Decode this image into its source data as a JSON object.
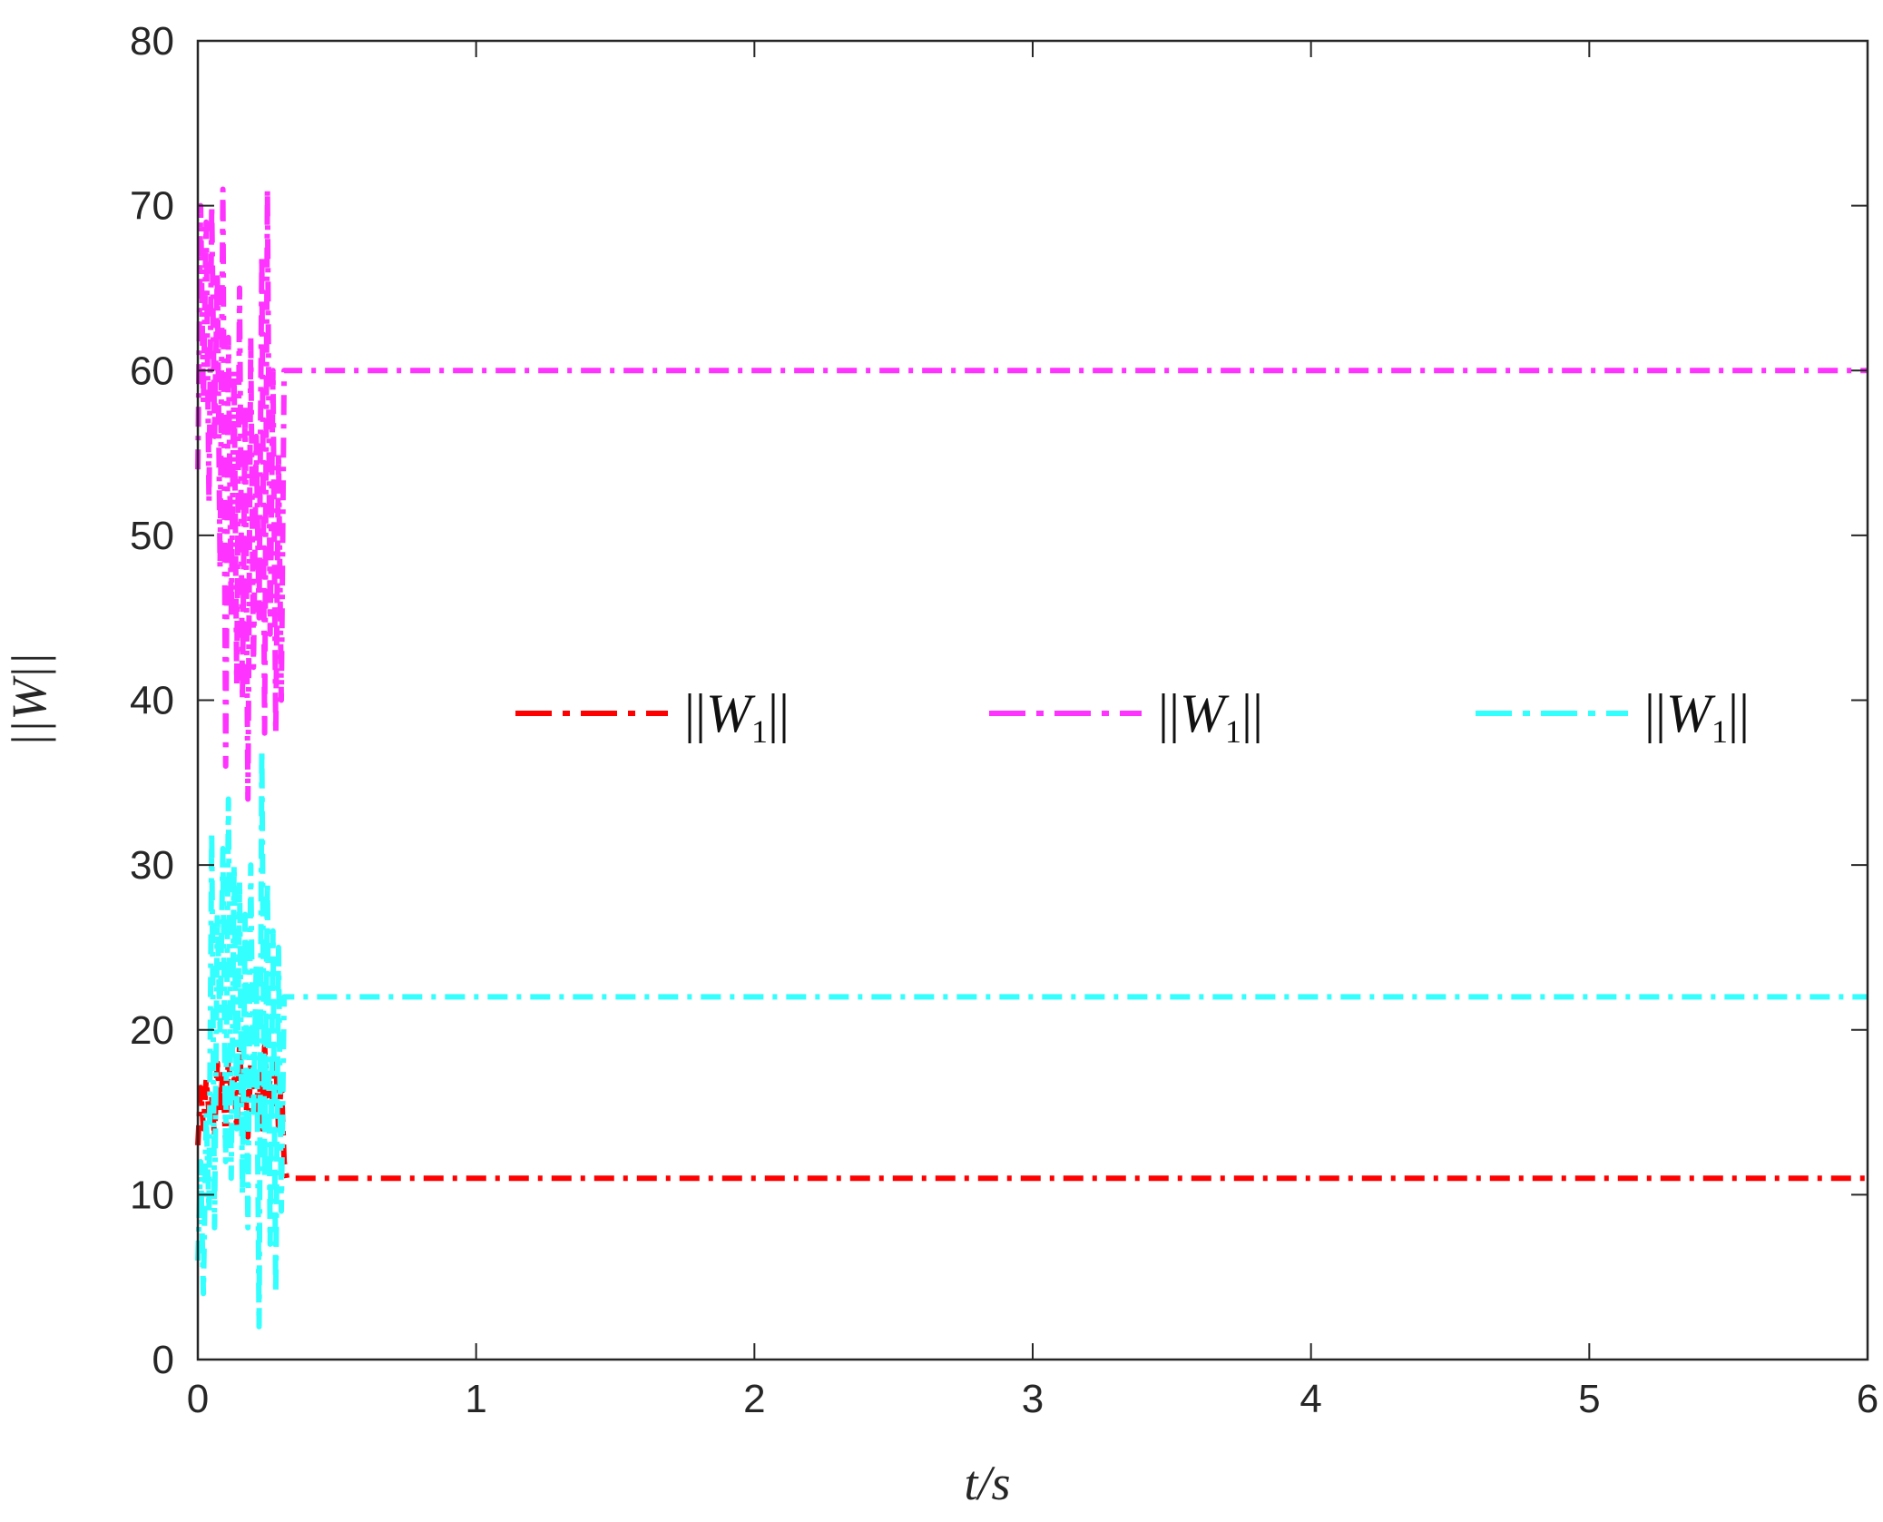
{
  "chart_data": {
    "type": "line",
    "title": "",
    "xlabel": "t/s",
    "ylabel": "||W||",
    "xlim": [
      0,
      6
    ],
    "ylim": [
      0,
      80
    ],
    "xticks": [
      "0",
      "1",
      "2",
      "3",
      "4",
      "5",
      "6"
    ],
    "yticks": [
      "0",
      "10",
      "20",
      "30",
      "40",
      "50",
      "60",
      "70",
      "80"
    ],
    "grid": false,
    "legend_placement": "center",
    "legend_parts": {
      "norm": "||",
      "symbol": "W",
      "subscript": "1"
    },
    "series": [
      {
        "name": "||W1||",
        "color": "#ff0000",
        "x": [
          0,
          0.01,
          0.02,
          0.03,
          0.04,
          0.05,
          0.06,
          0.07,
          0.08,
          0.09,
          0.1,
          0.11,
          0.12,
          0.13,
          0.14,
          0.15,
          0.16,
          0.17,
          0.18,
          0.19,
          0.2,
          0.21,
          0.22,
          0.23,
          0.24,
          0.25,
          0.26,
          0.27,
          0.28,
          0.29,
          0.3,
          0.31,
          0.32,
          0.5,
          1,
          1.5,
          2,
          2.5,
          3,
          3.5,
          4,
          4.5,
          5,
          5.5,
          6
        ],
        "values": [
          13,
          16.5,
          14,
          17,
          15,
          16,
          13.5,
          18,
          15,
          17.5,
          13,
          18.5,
          16,
          17,
          14,
          19,
          15.5,
          17,
          13.5,
          18,
          16,
          15,
          17.5,
          14,
          19,
          16,
          17,
          15.5,
          18.5,
          14,
          17,
          12,
          11,
          11,
          11,
          11,
          11,
          11,
          11,
          11,
          11,
          11,
          11,
          11,
          11
        ]
      },
      {
        "name": "||W1||",
        "color": "#ff33ff",
        "x": [
          0,
          0.01,
          0.02,
          0.03,
          0.04,
          0.05,
          0.06,
          0.07,
          0.08,
          0.09,
          0.1,
          0.11,
          0.12,
          0.13,
          0.14,
          0.15,
          0.16,
          0.17,
          0.18,
          0.19,
          0.2,
          0.21,
          0.22,
          0.23,
          0.24,
          0.25,
          0.26,
          0.27,
          0.28,
          0.29,
          0.3,
          0.31,
          0.32,
          0.5,
          1,
          1.5,
          2,
          2.5,
          3,
          3.5,
          4,
          4.5,
          5,
          5.5,
          6
        ],
        "values": [
          54,
          70,
          58,
          69,
          52,
          70,
          56,
          66,
          48,
          71,
          36,
          62,
          45,
          60,
          41,
          65,
          40,
          58,
          34,
          62,
          42,
          56,
          45,
          67,
          38,
          71,
          44,
          60,
          38,
          55,
          40,
          60,
          60,
          60,
          60,
          60,
          60,
          60,
          60,
          60,
          60,
          60,
          60,
          60,
          60
        ]
      },
      {
        "name": "||W1||",
        "color": "#33ffff",
        "x": [
          0,
          0.01,
          0.02,
          0.03,
          0.04,
          0.05,
          0.06,
          0.07,
          0.08,
          0.09,
          0.1,
          0.11,
          0.12,
          0.13,
          0.14,
          0.15,
          0.16,
          0.17,
          0.18,
          0.19,
          0.2,
          0.21,
          0.22,
          0.23,
          0.24,
          0.25,
          0.26,
          0.27,
          0.28,
          0.29,
          0.3,
          0.31,
          0.32,
          0.5,
          1,
          1.5,
          2,
          2.5,
          3,
          3.5,
          4,
          4.5,
          5,
          5.5,
          6
        ],
        "values": [
          6,
          12,
          4,
          15,
          9,
          32,
          8,
          27,
          20,
          31,
          12,
          34,
          11,
          30,
          14,
          29,
          10,
          27,
          8,
          30,
          15,
          24,
          2,
          37,
          11,
          29,
          7,
          26,
          4,
          25,
          9,
          22,
          22,
          22,
          22,
          22,
          22,
          22,
          22,
          22,
          22,
          22,
          22,
          22,
          22
        ]
      }
    ]
  }
}
